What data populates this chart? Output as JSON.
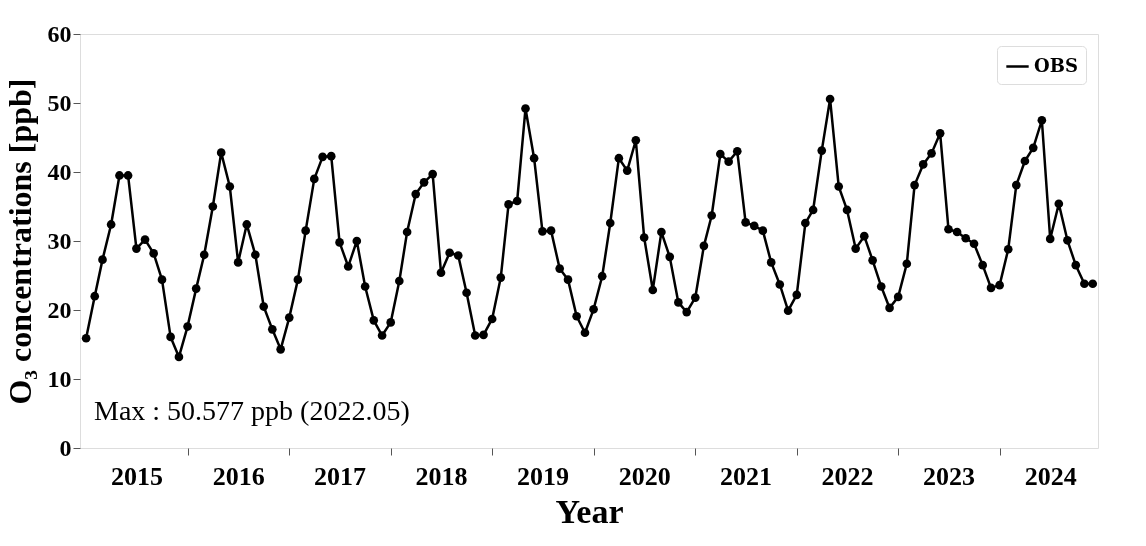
{
  "chart_data": {
    "type": "line",
    "xlabel": "Year",
    "ylabel": "O₃ concentrations [ppb]",
    "x": [
      "2015-01",
      "2015-02",
      "2015-03",
      "2015-04",
      "2015-05",
      "2015-06",
      "2015-07",
      "2015-08",
      "2015-09",
      "2015-10",
      "2015-11",
      "2015-12",
      "2016-01",
      "2016-02",
      "2016-03",
      "2016-04",
      "2016-05",
      "2016-06",
      "2016-07",
      "2016-08",
      "2016-09",
      "2016-10",
      "2016-11",
      "2016-12",
      "2017-01",
      "2017-02",
      "2017-03",
      "2017-04",
      "2017-05",
      "2017-06",
      "2017-07",
      "2017-08",
      "2017-09",
      "2017-10",
      "2017-11",
      "2017-12",
      "2018-01",
      "2018-02",
      "2018-03",
      "2018-04",
      "2018-05",
      "2018-06",
      "2018-07",
      "2018-08",
      "2018-09",
      "2018-10",
      "2018-11",
      "2018-12",
      "2019-01",
      "2019-02",
      "2019-03",
      "2019-04",
      "2019-05",
      "2019-06",
      "2019-07",
      "2019-08",
      "2019-09",
      "2019-10",
      "2019-11",
      "2019-12",
      "2020-01",
      "2020-02",
      "2020-03",
      "2020-04",
      "2020-05",
      "2020-06",
      "2020-07",
      "2020-08",
      "2020-09",
      "2020-10",
      "2020-11",
      "2020-12",
      "2021-01",
      "2021-02",
      "2021-03",
      "2021-04",
      "2021-05",
      "2021-06",
      "2021-07",
      "2021-08",
      "2021-09",
      "2021-10",
      "2021-11",
      "2021-12",
      "2022-01",
      "2022-02",
      "2022-03",
      "2022-04",
      "2022-05",
      "2022-06",
      "2022-07",
      "2022-08",
      "2022-09",
      "2022-10",
      "2022-11",
      "2022-12",
      "2023-01",
      "2023-02",
      "2023-03",
      "2023-04",
      "2023-05",
      "2023-06",
      "2023-07",
      "2023-08",
      "2023-09",
      "2023-10",
      "2023-11",
      "2023-12",
      "2024-01",
      "2024-02",
      "2024-03",
      "2024-04",
      "2024-05",
      "2024-06",
      "2024-07",
      "2024-08",
      "2024-09",
      "2024-10",
      "2024-11",
      "2024-12"
    ],
    "series": [
      {
        "name": "OBS",
        "color": "#000000",
        "values": [
          15.9,
          22.0,
          27.3,
          32.4,
          39.5,
          39.5,
          28.9,
          30.2,
          28.2,
          24.4,
          16.1,
          13.2,
          17.6,
          23.1,
          28.0,
          35.0,
          42.8,
          37.9,
          26.9,
          32.4,
          28.0,
          20.5,
          17.2,
          14.3,
          18.9,
          24.4,
          31.5,
          39.0,
          42.2,
          42.3,
          29.8,
          26.3,
          30.0,
          23.4,
          18.5,
          16.3,
          18.2,
          24.2,
          31.3,
          36.8,
          38.5,
          39.7,
          25.4,
          28.3,
          27.9,
          22.5,
          16.3,
          16.4,
          18.7,
          24.7,
          35.3,
          35.8,
          49.2,
          42.0,
          31.4,
          31.5,
          26.0,
          24.4,
          19.1,
          16.7,
          20.1,
          24.9,
          32.6,
          42.0,
          40.2,
          44.6,
          30.5,
          22.9,
          31.3,
          27.7,
          21.1,
          19.7,
          21.8,
          29.3,
          33.7,
          42.6,
          41.5,
          43.0,
          32.7,
          32.2,
          31.5,
          26.9,
          23.7,
          19.9,
          22.2,
          32.6,
          34.5,
          43.1,
          50.577,
          37.9,
          34.5,
          28.9,
          30.7,
          27.2,
          23.4,
          20.3,
          21.9,
          26.7,
          38.1,
          41.1,
          42.7,
          45.6,
          31.7,
          31.3,
          30.4,
          29.6,
          26.5,
          23.2,
          23.6,
          28.8,
          38.1,
          41.6,
          43.5,
          47.5,
          30.3,
          35.4,
          30.1,
          26.5,
          23.8,
          23.8
        ]
      }
    ],
    "xlim": [
      "2014-12-10",
      "2024-12-20"
    ],
    "xticks": [
      {
        "value": "2015-07-01",
        "label": "2015"
      },
      {
        "value": "2016-01-01",
        "label": null
      },
      {
        "value": "2016-07-01",
        "label": "2016"
      },
      {
        "value": "2017-01-01",
        "label": null
      },
      {
        "value": "2017-07-01",
        "label": "2017"
      },
      {
        "value": "2018-01-01",
        "label": null
      },
      {
        "value": "2018-07-01",
        "label": "2018"
      },
      {
        "value": "2019-01-01",
        "label": null
      },
      {
        "value": "2019-07-01",
        "label": "2019"
      },
      {
        "value": "2020-01-01",
        "label": null
      },
      {
        "value": "2020-07-01",
        "label": "2020"
      },
      {
        "value": "2021-01-01",
        "label": null
      },
      {
        "value": "2021-07-01",
        "label": "2021"
      },
      {
        "value": "2022-01-01",
        "label": null
      },
      {
        "value": "2022-07-01",
        "label": "2022"
      },
      {
        "value": "2023-01-01",
        "label": null
      },
      {
        "value": "2023-07-01",
        "label": "2023"
      },
      {
        "value": "2024-01-01",
        "label": null
      },
      {
        "value": "2024-07-01",
        "label": "2024"
      }
    ],
    "ylim": [
      0,
      60
    ],
    "yticks": [
      0,
      10,
      20,
      30,
      40,
      50,
      60
    ],
    "grid": false,
    "legend": "top right",
    "marker": "circle",
    "line_style": "solid",
    "annotations": [
      "Max : 50.577 ppb (2022.05)"
    ]
  }
}
